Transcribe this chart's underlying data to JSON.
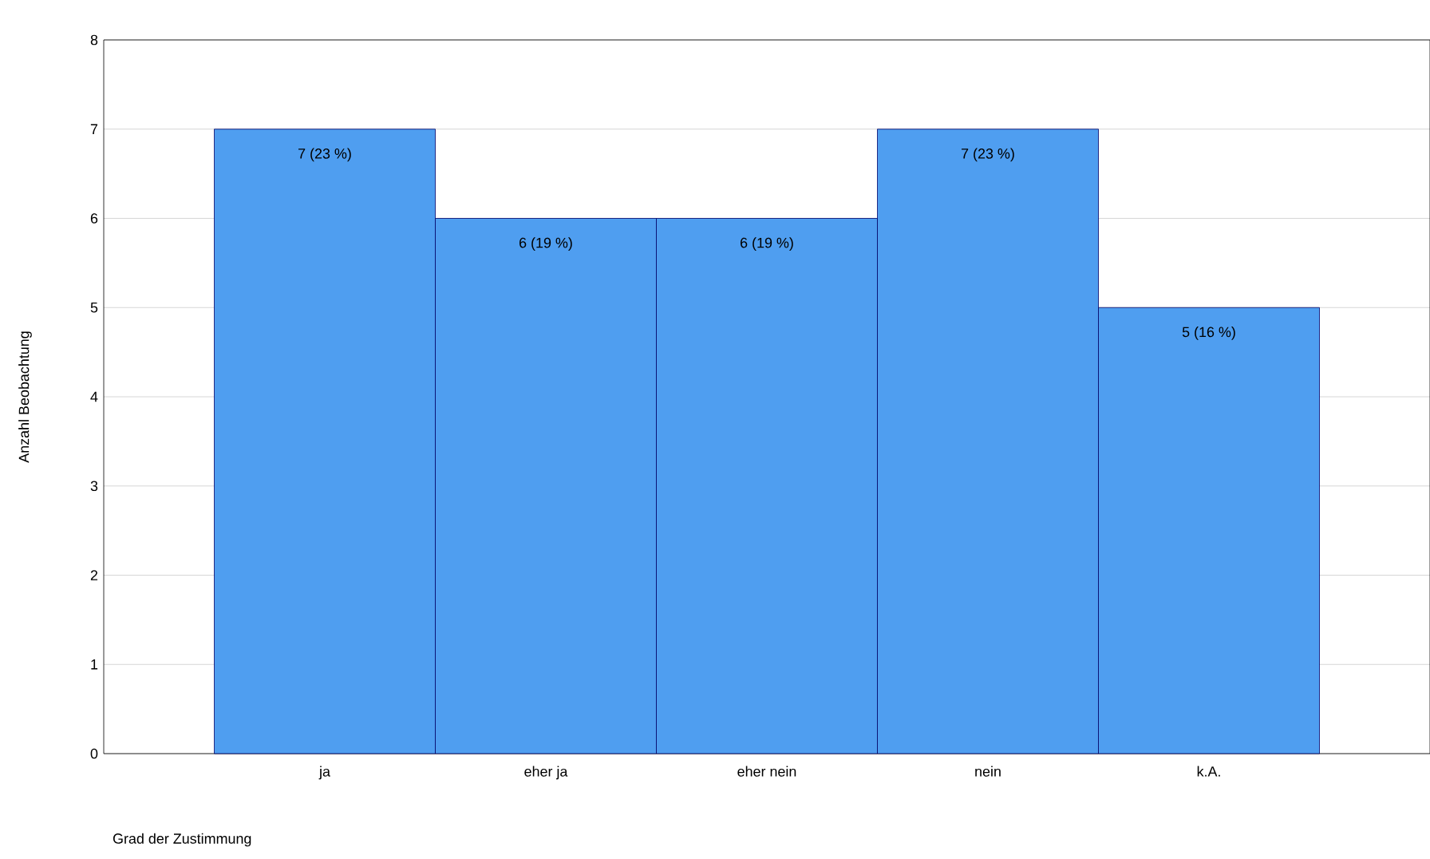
{
  "chart_data": {
    "type": "bar",
    "xlabel": "Grad der Zustimmung",
    "ylabel": "Anzahl Beobachtung",
    "categories": [
      "ja",
      "eher ja",
      "eher nein",
      "nein",
      "k.A."
    ],
    "values": [
      7,
      6,
      6,
      7,
      5
    ],
    "value_labels": [
      "7 (23 %)",
      "6 (19 %)",
      "6 (19 %)",
      "7 (23 %)",
      "5 (16 %)"
    ],
    "color": "#4f9ef0",
    "ylim": [
      0,
      8
    ],
    "yticks": [
      0,
      1,
      2,
      3,
      4,
      5,
      6,
      7,
      8
    ],
    "grid": "y"
  }
}
